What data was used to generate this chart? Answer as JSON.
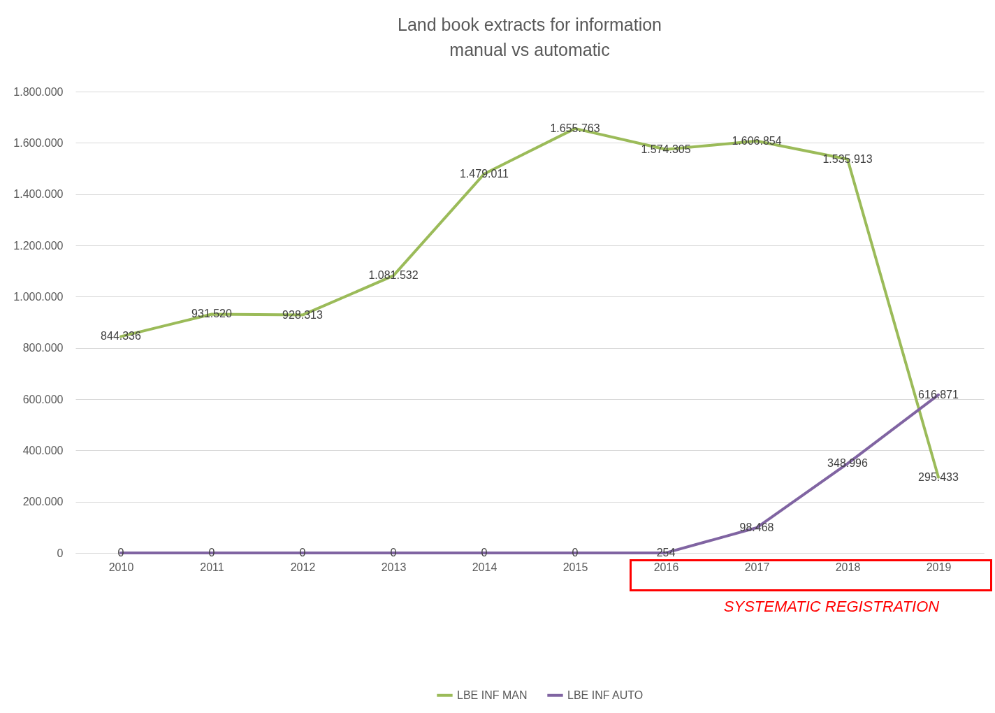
{
  "chart_data": {
    "type": "line",
    "title": "Land book extracts for information\nmanual vs automatic",
    "categories": [
      "2010",
      "2011",
      "2012",
      "2013",
      "2014",
      "2015",
      "2016",
      "2017",
      "2018",
      "2019"
    ],
    "series": [
      {
        "name": "LBE INF MAN",
        "color": "#9bbb59",
        "values": [
          844336,
          931520,
          928313,
          1081532,
          1479011,
          1655763,
          1574305,
          1606854,
          1535913,
          295433
        ],
        "value_labels": [
          "844.336",
          "931.520",
          "928.313",
          "1.081.532",
          "1.479.011",
          "1.655.763",
          "1.574.305",
          "1.606.854",
          "1.535.913",
          "295.433"
        ]
      },
      {
        "name": "LBE INF AUTO",
        "color": "#8064a2",
        "values": [
          0,
          0,
          0,
          0,
          0,
          0,
          254,
          98468,
          348996,
          616871
        ],
        "value_labels": [
          "0",
          "0",
          "0",
          "0",
          "0",
          "0",
          "254",
          "98.468",
          "348.996",
          "616.871"
        ]
      }
    ],
    "ylim": [
      0,
      1800000
    ],
    "yticks": [
      {
        "value": 0,
        "label": "0"
      },
      {
        "value": 200000,
        "label": "200.000"
      },
      {
        "value": 400000,
        "label": "400.000"
      },
      {
        "value": 600000,
        "label": "600.000"
      },
      {
        "value": 800000,
        "label": "800.000"
      },
      {
        "value": 1000000,
        "label": "1.000.000"
      },
      {
        "value": 1200000,
        "label": "1.200.000"
      },
      {
        "value": 1400000,
        "label": "1.400.000"
      },
      {
        "value": 1600000,
        "label": "1.600.000"
      },
      {
        "value": 1800000,
        "label": "1.800.000"
      }
    ],
    "annotations": [
      "SYSTEMATIC REGISTRATION"
    ],
    "grid": "y",
    "legend": "bottom"
  }
}
